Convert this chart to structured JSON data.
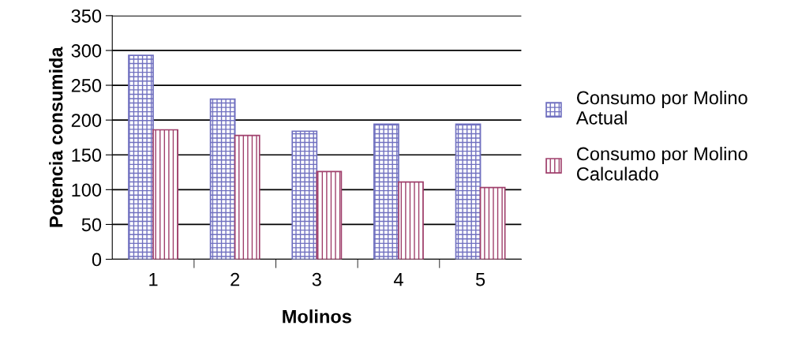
{
  "chart_data": {
    "type": "bar",
    "xlabel": "Molinos",
    "ylabel": "Potencia consumida",
    "categories": [
      "1",
      "2",
      "3",
      "4",
      "5"
    ],
    "series": [
      {
        "name": "Consumo por Molino\nActual",
        "color": "#7070c0",
        "values": [
          293,
          230,
          184,
          194,
          194
        ]
      },
      {
        "name": "Consumo por Molino\nCalculado",
        "color": "#a0406c",
        "values": [
          186,
          178,
          126,
          111,
          103
        ]
      }
    ],
    "ylim": [
      0,
      350
    ],
    "yticks": [
      0,
      50,
      100,
      150,
      200,
      250,
      300,
      350
    ],
    "grid": "y",
    "legend": "right"
  }
}
